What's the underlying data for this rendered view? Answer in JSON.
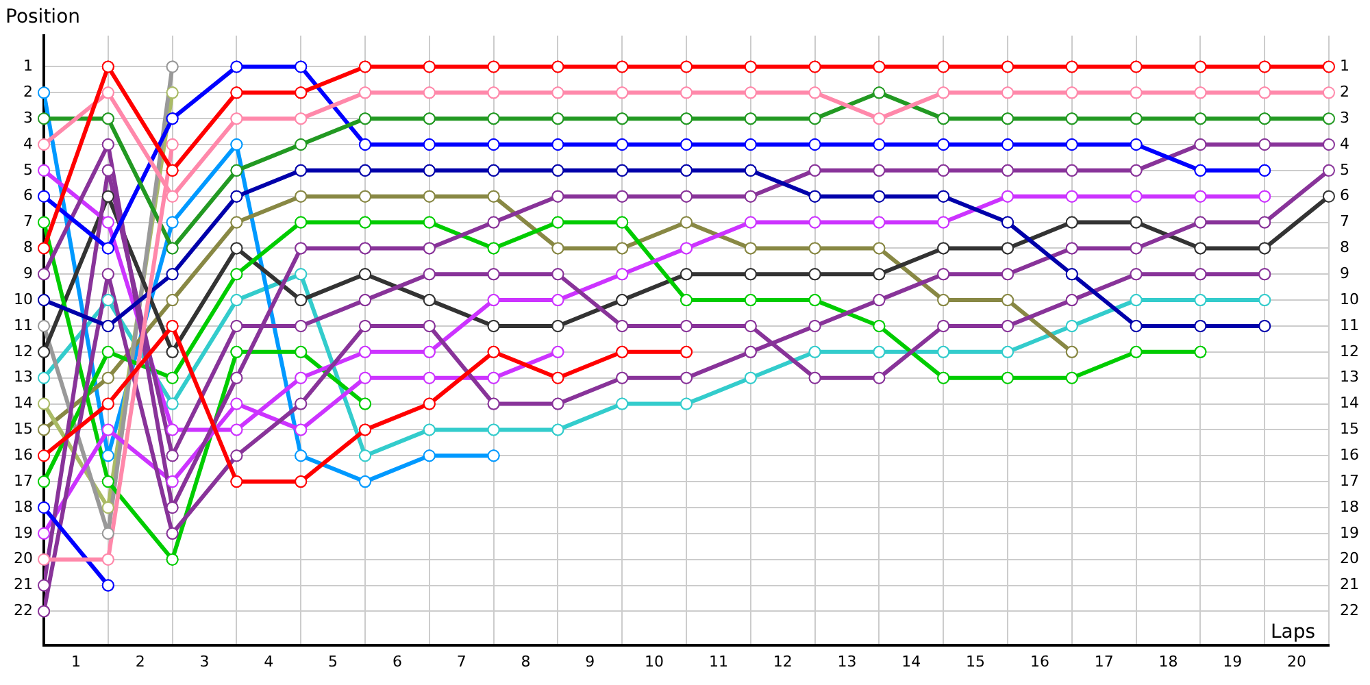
{
  "chart_data": {
    "type": "line",
    "xlabel": "Laps",
    "ylabel": "Position",
    "x": [
      0,
      1,
      2,
      3,
      4,
      5,
      6,
      7,
      8,
      9,
      10,
      11,
      12,
      13,
      14,
      15,
      16,
      17,
      18,
      19,
      20
    ],
    "xlim": [
      0,
      20
    ],
    "xticks": [
      {
        "value": 0,
        "label": null
      },
      {
        "value": 0.5,
        "label": "1"
      },
      {
        "value": 1,
        "label": null
      },
      {
        "value": 1.5,
        "label": "2"
      },
      {
        "value": 2,
        "label": null
      },
      {
        "value": 2.5,
        "label": "3"
      },
      {
        "value": 3,
        "label": null
      },
      {
        "value": 3.5,
        "label": "4"
      },
      {
        "value": 4,
        "label": null
      },
      {
        "value": 4.5,
        "label": "5"
      },
      {
        "value": 5,
        "label": null
      },
      {
        "value": 5.5,
        "label": "6"
      },
      {
        "value": 6,
        "label": null
      },
      {
        "value": 6.5,
        "label": "7"
      },
      {
        "value": 7,
        "label": null
      },
      {
        "value": 7.5,
        "label": "8"
      },
      {
        "value": 8,
        "label": null
      },
      {
        "value": 8.5,
        "label": "9"
      },
      {
        "value": 9,
        "label": null
      },
      {
        "value": 9.5,
        "label": "10"
      },
      {
        "value": 10,
        "label": null
      },
      {
        "value": 10.5,
        "label": "11"
      },
      {
        "value": 11,
        "label": null
      },
      {
        "value": 11.5,
        "label": "12"
      },
      {
        "value": 12,
        "label": null
      },
      {
        "value": 12.5,
        "label": "13"
      },
      {
        "value": 13,
        "label": null
      },
      {
        "value": 13.5,
        "label": "14"
      },
      {
        "value": 14,
        "label": null
      },
      {
        "value": 14.5,
        "label": "15"
      },
      {
        "value": 15,
        "label": null
      },
      {
        "value": 15.5,
        "label": "16"
      },
      {
        "value": 16,
        "label": null
      },
      {
        "value": 16.5,
        "label": "17"
      },
      {
        "value": 17,
        "label": null
      },
      {
        "value": 17.5,
        "label": "18"
      },
      {
        "value": 18,
        "label": null
      },
      {
        "value": 18.5,
        "label": "19"
      },
      {
        "value": 19,
        "label": null
      },
      {
        "value": 19.5,
        "label": "20"
      },
      {
        "value": 20,
        "label": null
      }
    ],
    "ylim": [
      23.3,
      -0.2
    ],
    "yticks": [
      1,
      2,
      3,
      4,
      5,
      6,
      7,
      8,
      9,
      10,
      11,
      12,
      13,
      14,
      15,
      16,
      17,
      18,
      19,
      20,
      21,
      22
    ],
    "y2lim": [
      23.3,
      -0.2
    ],
    "y2ticks": [
      1,
      2,
      3,
      4,
      5,
      6,
      7,
      8,
      9,
      10,
      11,
      12,
      13,
      14,
      15,
      16,
      17,
      18,
      19,
      20,
      21,
      22
    ],
    "grid": true,
    "marker": "circle",
    "line_style": "solid",
    "series": [
      {
        "color": "#ff0000",
        "values": [
          8,
          1,
          5,
          2,
          2,
          1,
          1,
          1,
          1,
          1,
          1,
          1,
          1,
          1,
          1,
          1,
          1,
          1,
          1,
          1,
          1
        ]
      },
      {
        "color": "#ff0000",
        "values": [
          16,
          14,
          11,
          17,
          17,
          15,
          14,
          12,
          13,
          12,
          12,
          null,
          null,
          null,
          null,
          null,
          null,
          null,
          null,
          null,
          null
        ]
      },
      {
        "color": "#ff88aa",
        "values": [
          4,
          2,
          6,
          3,
          3,
          2,
          2,
          2,
          2,
          2,
          2,
          2,
          2,
          3,
          2,
          2,
          2,
          2,
          2,
          2,
          2
        ]
      },
      {
        "color": "#ff88aa",
        "values": [
          20,
          20,
          4,
          null,
          null,
          null,
          null,
          null,
          null,
          null,
          null,
          null,
          null,
          null,
          null,
          null,
          null,
          null,
          null,
          null,
          null
        ]
      },
      {
        "color": "#229922",
        "values": [
          3,
          3,
          8,
          5,
          4,
          3,
          3,
          3,
          3,
          3,
          3,
          3,
          3,
          2,
          3,
          3,
          3,
          3,
          3,
          3,
          3
        ]
      },
      {
        "color": "#0000ff",
        "values": [
          6,
          8,
          3,
          1,
          1,
          4,
          4,
          4,
          4,
          4,
          4,
          4,
          4,
          4,
          4,
          4,
          4,
          4,
          5,
          5,
          null
        ]
      },
      {
        "color": "#0000ff",
        "values": [
          18,
          21,
          null,
          null,
          null,
          null,
          null,
          null,
          null,
          null,
          null,
          null,
          null,
          null,
          null,
          null,
          null,
          null,
          null,
          null,
          null
        ]
      },
      {
        "color": "#0000aa",
        "values": [
          10,
          11,
          9,
          6,
          5,
          5,
          5,
          5,
          5,
          5,
          5,
          5,
          6,
          6,
          6,
          7,
          9,
          11,
          11,
          11,
          null
        ]
      },
      {
        "color": "#883399",
        "values": [
          9,
          4,
          18,
          13,
          8,
          8,
          8,
          7,
          6,
          6,
          6,
          6,
          5,
          5,
          5,
          5,
          5,
          5,
          4,
          4,
          4
        ]
      },
      {
        "color": "#883399",
        "values": [
          21,
          5,
          16,
          11,
          11,
          10,
          9,
          9,
          9,
          11,
          11,
          11,
          13,
          13,
          11,
          11,
          10,
          9,
          9,
          9,
          null
        ]
      },
      {
        "color": "#883399",
        "values": [
          22,
          9,
          19,
          16,
          14,
          11,
          11,
          14,
          14,
          13,
          13,
          12,
          11,
          10,
          9,
          9,
          8,
          8,
          7,
          7,
          5
        ]
      },
      {
        "color": "#cc33ff",
        "values": [
          5,
          7,
          15,
          15,
          13,
          12,
          12,
          10,
          10,
          9,
          8,
          7,
          7,
          7,
          7,
          6,
          6,
          6,
          6,
          6,
          null
        ]
      },
      {
        "color": "#cc33ff",
        "values": [
          19,
          15,
          17,
          14,
          15,
          13,
          13,
          13,
          12,
          null,
          null,
          null,
          null,
          null,
          null,
          null,
          null,
          null,
          null,
          null,
          null
        ]
      },
      {
        "color": "#00cc00",
        "values": [
          7,
          17,
          20,
          12,
          12,
          14,
          null,
          null,
          null,
          null,
          null,
          null,
          null,
          null,
          null,
          null,
          null,
          null,
          null,
          null,
          null
        ]
      },
      {
        "color": "#00cc00",
        "values": [
          17,
          12,
          13,
          9,
          7,
          7,
          7,
          8,
          7,
          7,
          10,
          10,
          10,
          11,
          13,
          13,
          13,
          12,
          12,
          null,
          null
        ]
      },
      {
        "color": "#333333",
        "values": [
          12,
          6,
          12,
          8,
          10,
          9,
          10,
          11,
          11,
          10,
          9,
          9,
          9,
          9,
          8,
          8,
          7,
          7,
          8,
          8,
          6
        ]
      },
      {
        "color": "#999999",
        "values": [
          11,
          19,
          1,
          null,
          null,
          null,
          null,
          null,
          null,
          null,
          null,
          null,
          null,
          null,
          null,
          null,
          null,
          null,
          null,
          null,
          null
        ]
      },
      {
        "color": "#aabb66",
        "values": [
          14,
          18,
          2,
          null,
          null,
          null,
          null,
          null,
          null,
          null,
          null,
          null,
          null,
          null,
          null,
          null,
          null,
          null,
          null,
          null,
          null
        ]
      },
      {
        "color": "#888844",
        "values": [
          15,
          13,
          10,
          7,
          6,
          6,
          6,
          6,
          8,
          8,
          7,
          8,
          8,
          8,
          10,
          10,
          12,
          null,
          null,
          null,
          null
        ]
      },
      {
        "color": "#0099ff",
        "values": [
          2,
          16,
          7,
          4,
          16,
          17,
          16,
          16,
          null,
          null,
          null,
          null,
          null,
          null,
          null,
          null,
          null,
          null,
          null,
          null,
          null
        ]
      },
      {
        "color": "#33cccc",
        "values": [
          13,
          10,
          14,
          10,
          9,
          16,
          15,
          15,
          15,
          14,
          14,
          13,
          12,
          12,
          12,
          12,
          11,
          10,
          10,
          10,
          null
        ]
      }
    ]
  }
}
